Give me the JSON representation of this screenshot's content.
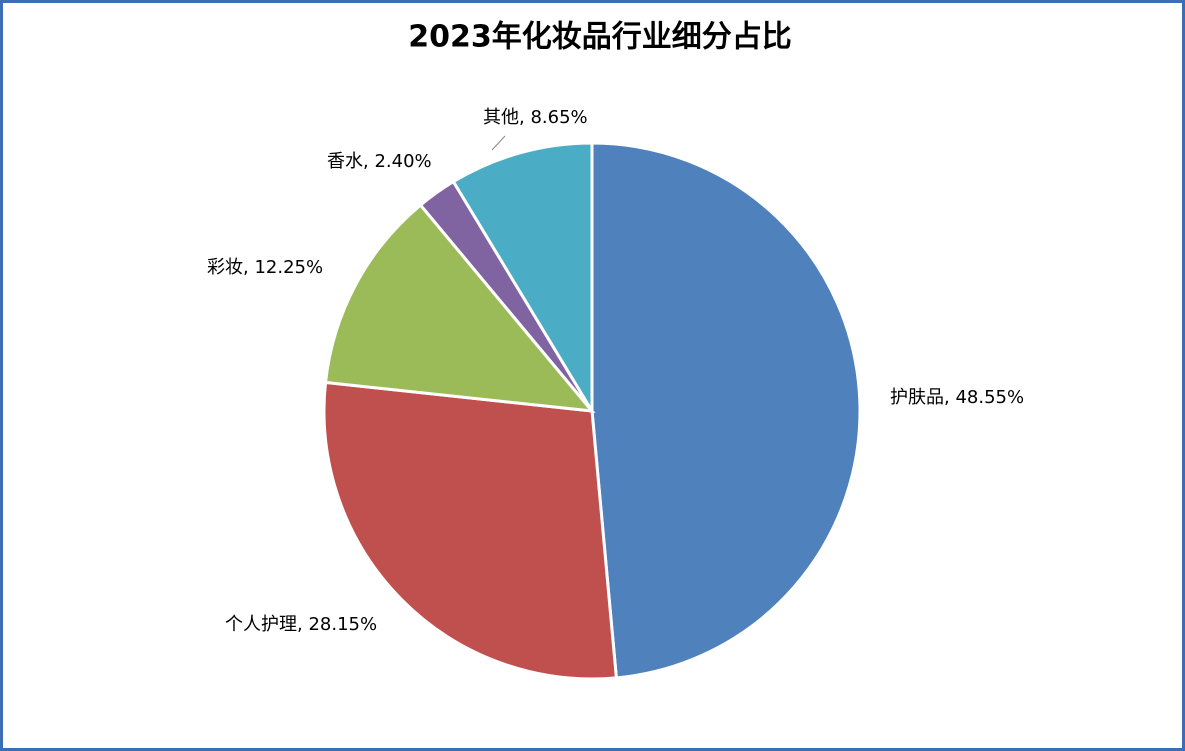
{
  "chart_data": {
    "type": "pie",
    "title": "2023年化妆品行业细分占比",
    "values": [
      48.55,
      28.15,
      12.25,
      2.4,
      8.65
    ],
    "value_labels": [
      "护肤品, 48.55%",
      "个人护理, 28.15%",
      "彩妆, 12.25%",
      "香水, 2.40%",
      "其他, 8.65%"
    ],
    "colors": [
      "#4f81bd",
      "#c0504d",
      "#9bbb59",
      "#8064a2",
      "#4bacc6"
    ]
  }
}
